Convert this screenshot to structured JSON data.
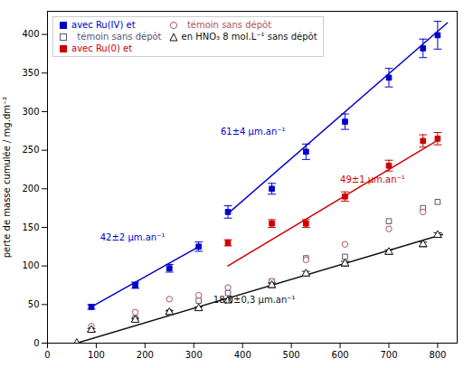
{
  "chart_data": {
    "type": "scatter",
    "ylabel": "perte de masse cumulée / mg.dm⁻²",
    "xlim": [
      0,
      840
    ],
    "ylim": [
      0,
      430
    ],
    "xticks": [
      0,
      100,
      200,
      300,
      400,
      500,
      600,
      700,
      800
    ],
    "yticks": [
      0,
      50,
      100,
      150,
      200,
      250,
      300,
      350,
      400
    ],
    "legend": "upper left",
    "series": [
      {
        "name": "avec Ru(IV) et",
        "type": "scatter",
        "marker": "square",
        "color": "#0000cc",
        "x": [
          90,
          180,
          250,
          310,
          370,
          460,
          530,
          610,
          700,
          770,
          800
        ],
        "values": [
          47,
          75,
          97,
          125,
          170,
          200,
          248,
          287,
          344,
          382,
          399
        ],
        "errors": [
          3,
          4,
          5,
          6,
          8,
          7,
          10,
          10,
          12,
          12,
          18
        ]
      },
      {
        "name": "  témoin sans dépôt",
        "type": "scatter",
        "marker": "square-open",
        "color": "#555577",
        "x": [
          180,
          250,
          310,
          370,
          460,
          530,
          610,
          700,
          770,
          800
        ],
        "values": [
          32,
          40,
          55,
          65,
          80,
          110,
          112,
          158,
          175,
          183
        ]
      },
      {
        "name": "avec Ru(0) et",
        "type": "scatter",
        "marker": "square",
        "color": "#cc0000",
        "x": [
          370,
          460,
          530,
          610,
          700,
          770,
          800
        ],
        "values": [
          130,
          155,
          155,
          190,
          230,
          262,
          265
        ],
        "errors": [
          4,
          5,
          5,
          6,
          7,
          8,
          8
        ]
      },
      {
        "name": "  témoin sans dépôt",
        "type": "scatter",
        "marker": "circle-open",
        "color": "#aa5555",
        "x": [
          90,
          180,
          250,
          310,
          370,
          460,
          530,
          610,
          700,
          770
        ],
        "values": [
          22,
          40,
          57,
          62,
          72,
          80,
          108,
          128,
          148,
          170
        ]
      },
      {
        "name": "en HNO₃ 8 mol.L⁻¹ sans dépôt",
        "type": "scatter",
        "marker": "triangle-open",
        "color": "#111111",
        "x": [
          60,
          90,
          180,
          250,
          310,
          370,
          460,
          530,
          610,
          700,
          770,
          800
        ],
        "values": [
          0,
          17,
          30,
          40,
          45,
          55,
          75,
          90,
          103,
          118,
          128,
          140
        ],
        "errors": [
          0,
          2,
          2,
          2,
          2,
          2,
          3,
          3,
          3,
          3,
          3,
          3
        ]
      },
      {
        "type": "line",
        "line_style": "solid",
        "color": "#0000cc",
        "x": [
          90,
          310
        ],
        "values": [
          47,
          125
        ]
      },
      {
        "type": "line",
        "line_style": "solid",
        "color": "#0000cc",
        "x": [
          370,
          820
        ],
        "values": [
          168,
          415
        ]
      },
      {
        "type": "line",
        "line_style": "solid",
        "color": "#cc0000",
        "x": [
          370,
          800
        ],
        "values": [
          100,
          263
        ]
      },
      {
        "type": "line",
        "line_style": "solid",
        "color": "#111111",
        "x": [
          60,
          810
        ],
        "values": [
          0,
          141
        ]
      }
    ],
    "annotations": [
      {
        "text": "42±2 μm.an⁻¹",
        "x": 108,
        "y": 133,
        "color": "#0000cc"
      },
      {
        "text": "61±4 μm.an⁻¹",
        "x": 355,
        "y": 270,
        "color": "#0000cc"
      },
      {
        "text": "49±1 μm.an⁻¹",
        "x": 600,
        "y": 208,
        "color": "#cc0000"
      },
      {
        "text": "18,0±0,3 μm.an⁻¹",
        "x": 340,
        "y": 52,
        "color": "#111111"
      }
    ]
  }
}
